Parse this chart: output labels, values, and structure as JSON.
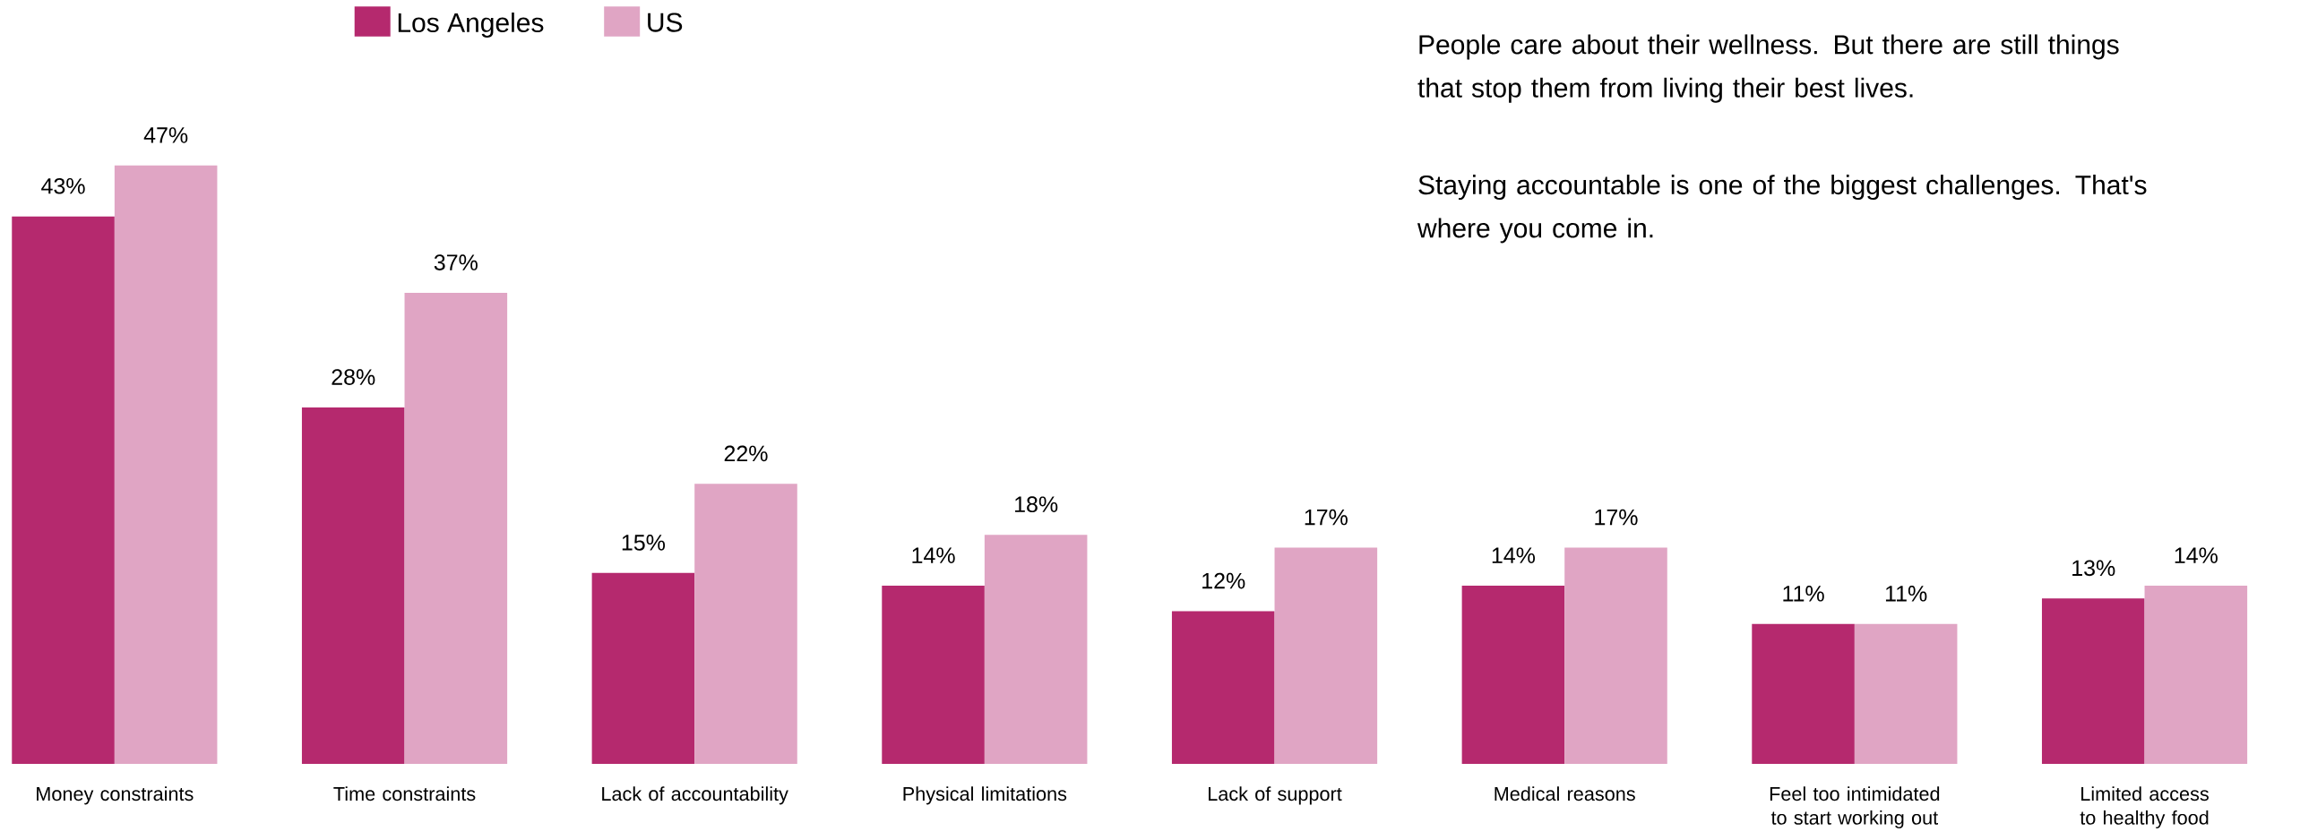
{
  "chart_data": {
    "type": "bar",
    "categories": [
      "Money constraints",
      "Time constraints",
      "Lack of accountability",
      "Physical limitations",
      "Lack of support",
      "Medical reasons",
      "Feel too intimidated to start working out",
      "Limited access to healthy food"
    ],
    "series": [
      {
        "name": "Los Angeles",
        "color": "#b5296e",
        "values": [
          43,
          28,
          15,
          14,
          12,
          14,
          11,
          13
        ],
        "value_labels": [
          "43%",
          "28%",
          "15%",
          "14%",
          "12%",
          "14%",
          "11%",
          "13%"
        ]
      },
      {
        "name": "US",
        "color": "#e0a5c4",
        "values": [
          47,
          37,
          22,
          18,
          17,
          17,
          11,
          14
        ],
        "value_labels": [
          "47%",
          "37%",
          "22%",
          "18%",
          "17%",
          "17%",
          "11%",
          "14%"
        ]
      }
    ],
    "annotations": [
      "People care about their wellness. But there are still things that stop them from living their best lives.",
      "Staying accountable is one of the biggest challenges. That's where you come in."
    ],
    "legend": "top left"
  }
}
